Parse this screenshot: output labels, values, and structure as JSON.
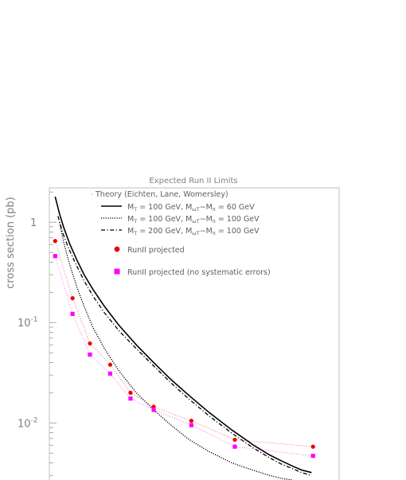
{
  "chart_data": {
    "type": "line",
    "title": "Expected Run II Limits",
    "ylabel": "cross section (pb)",
    "xlabel": "",
    "yscale": "log",
    "ylim": [
      0.0027,
      2.2
    ],
    "y_ticks": [
      {
        "value": 1,
        "label": "1",
        "exp": ""
      },
      {
        "value": 0.1,
        "label": "10",
        "exp": "-1"
      },
      {
        "value": 0.01,
        "label": "10",
        "exp": "-2"
      }
    ],
    "x_range": [
      0,
      100
    ],
    "grid": false,
    "legend_position": "top",
    "series": [
      {
        "name": "Theory (Eichten, Lane, Womersley)",
        "role": "legend-header",
        "style": "none",
        "x": [],
        "y": []
      },
      {
        "name": "M_T = 100 GeV,  M_ωT − M_π = 60 GeV",
        "name_parts": {
          "a": "M",
          "a_sub": "T",
          "b": " = 100 GeV,  M",
          "b_sub": "ωT",
          "c": "−M",
          "c_sub": "π",
          "d": " = 60 GeV"
        },
        "style": "solid",
        "color": "#000000",
        "x": [
          2.0,
          3.5,
          5.0,
          7.0,
          9.5,
          12.0,
          15.0,
          19.0,
          24.0,
          30.0,
          36.0,
          42.0,
          48.0,
          55.0,
          63.0,
          70.5,
          76.0,
          80.0,
          84.0,
          87.0,
          90.5
        ],
        "y": [
          1.8,
          1.22,
          0.88,
          0.61,
          0.42,
          0.3,
          0.215,
          0.145,
          0.094,
          0.06,
          0.04,
          0.027,
          0.019,
          0.0128,
          0.0085,
          0.006,
          0.0048,
          0.0042,
          0.0037,
          0.0034,
          0.0032
        ]
      },
      {
        "name": "M_T = 100 GeV,  M_ωT − M_π = 100 GeV",
        "name_parts": {
          "a": "M",
          "a_sub": "T",
          "b": " = 100 GeV,  M",
          "b_sub": "ωT",
          "c": "−M",
          "c_sub": "π",
          "d": " = 100 GeV"
        },
        "style": "dotted",
        "color": "#000000",
        "x": [
          3.5,
          5.0,
          7.0,
          9.5,
          12.0,
          15.0,
          19.0,
          24.0,
          30.0,
          36.0,
          42.0,
          48.0,
          55.0,
          63.0,
          70.0,
          76.0,
          80.0,
          84.0
        ],
        "y": [
          1.0,
          0.62,
          0.38,
          0.225,
          0.145,
          0.09,
          0.055,
          0.033,
          0.02,
          0.0135,
          0.0095,
          0.0069,
          0.0052,
          0.004,
          0.0034,
          0.003,
          0.0028,
          0.0027
        ]
      },
      {
        "name": "M_T = 200 GeV,  M_ωT − M_π = 100 GeV",
        "name_parts": {
          "a": "M",
          "a_sub": "T",
          "b": " = 200 GeV,  M",
          "b_sub": "ωT",
          "c": "−M",
          "c_sub": "π",
          "d": " = 100 GeV"
        },
        "style": "dashdot",
        "color": "#000000",
        "x": [
          3.0,
          4.5,
          6.5,
          9.0,
          12.0,
          15.0,
          19.0,
          24.0,
          30.0,
          36.0,
          42.0,
          48.0,
          55.0,
          63.0,
          70.5,
          76.0,
          80.0,
          84.0,
          87.0,
          90.5
        ],
        "y": [
          1.15,
          0.8,
          0.56,
          0.39,
          0.26,
          0.185,
          0.125,
          0.083,
          0.055,
          0.037,
          0.025,
          0.0175,
          0.0118,
          0.0079,
          0.0056,
          0.0045,
          0.0039,
          0.0035,
          0.0032,
          0.003
        ]
      },
      {
        "name": "RunII projected",
        "style": "dotted-marker",
        "marker": "circle",
        "color": "#ee0000",
        "x": [
          2.0,
          8.0,
          14.0,
          21.0,
          28.0,
          36.0,
          49.0,
          64.0,
          91.0
        ],
        "y": [
          0.65,
          0.175,
          0.062,
          0.038,
          0.02,
          0.0145,
          0.0105,
          0.0068,
          0.0058
        ]
      },
      {
        "name": "RunII projected (no systematic errors)",
        "style": "dotted-marker",
        "marker": "square",
        "color": "#ff00ff",
        "x": [
          2.0,
          8.0,
          14.0,
          21.0,
          28.0,
          36.0,
          49.0,
          64.0,
          91.0
        ],
        "y": [
          0.46,
          0.122,
          0.048,
          0.031,
          0.0175,
          0.0135,
          0.0095,
          0.0058,
          0.0047
        ]
      }
    ]
  }
}
